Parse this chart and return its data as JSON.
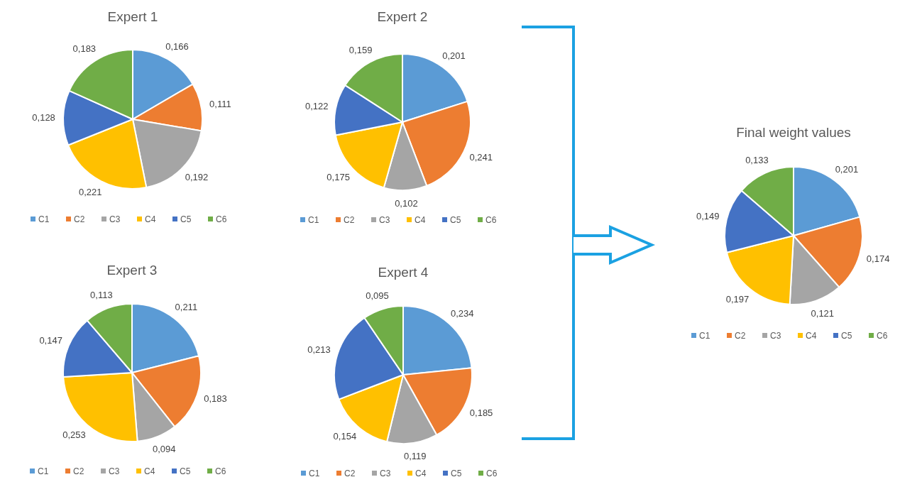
{
  "chart_data": [
    {
      "type": "pie",
      "title": "Expert 1",
      "categories": [
        "C1",
        "C2",
        "C3",
        "C4",
        "C5",
        "C6"
      ],
      "values": [
        0.166,
        0.111,
        0.192,
        0.221,
        0.128,
        0.183
      ],
      "value_labels": [
        "0,166",
        "0,111",
        "0,192",
        "0,221",
        "0,128",
        "0,183"
      ],
      "colors": [
        "#5b9bd5",
        "#ed7d31",
        "#a5a5a5",
        "#ffc000",
        "#4472c4",
        "#70ad47"
      ],
      "legend": "bottom"
    },
    {
      "type": "pie",
      "title": "Expert 2",
      "categories": [
        "C1",
        "C2",
        "C3",
        "C4",
        "C5",
        "C6"
      ],
      "values": [
        0.201,
        0.241,
        0.102,
        0.175,
        0.122,
        0.159
      ],
      "value_labels": [
        "0,201",
        "0,241",
        "0,102",
        "0,175",
        "0,122",
        "0,159"
      ],
      "colors": [
        "#5b9bd5",
        "#ed7d31",
        "#a5a5a5",
        "#ffc000",
        "#4472c4",
        "#70ad47"
      ],
      "legend": "bottom"
    },
    {
      "type": "pie",
      "title": "Expert 3",
      "categories": [
        "C1",
        "C2",
        "C3",
        "C4",
        "C5",
        "C6"
      ],
      "values": [
        0.211,
        0.183,
        0.094,
        0.253,
        0.147,
        0.113
      ],
      "value_labels": [
        "0,211",
        "0,183",
        "0,094",
        "0,253",
        "0,147",
        "0,113"
      ],
      "colors": [
        "#5b9bd5",
        "#ed7d31",
        "#a5a5a5",
        "#ffc000",
        "#4472c4",
        "#70ad47"
      ],
      "legend": "bottom"
    },
    {
      "type": "pie",
      "title": "Expert 4",
      "categories": [
        "C1",
        "C2",
        "C3",
        "C4",
        "C5",
        "C6"
      ],
      "values": [
        0.234,
        0.185,
        0.119,
        0.154,
        0.213,
        0.095
      ],
      "value_labels": [
        "0,234",
        "0,185",
        "0,119",
        "0,154",
        "0,213",
        "0,095"
      ],
      "colors": [
        "#5b9bd5",
        "#ed7d31",
        "#a5a5a5",
        "#ffc000",
        "#4472c4",
        "#70ad47"
      ],
      "legend": "bottom"
    },
    {
      "type": "pie",
      "title": "Final weight values",
      "categories": [
        "C1",
        "C2",
        "C3",
        "C4",
        "C5",
        "C6"
      ],
      "values": [
        0.201,
        0.174,
        0.121,
        0.197,
        0.149,
        0.133
      ],
      "value_labels": [
        "0,201",
        "0,174",
        "0,121",
        "0,197",
        "0,149",
        "0,133"
      ],
      "colors": [
        "#5b9bd5",
        "#ed7d31",
        "#a5a5a5",
        "#ffc000",
        "#4472c4",
        "#70ad47"
      ],
      "legend": "bottom"
    }
  ]
}
